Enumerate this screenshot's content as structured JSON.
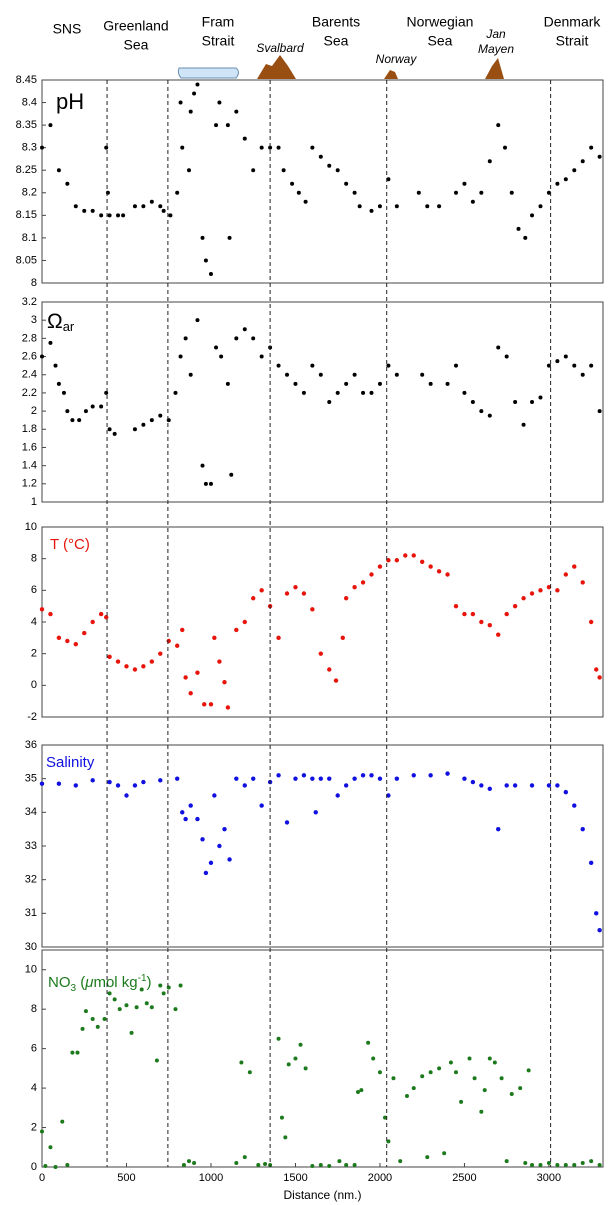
{
  "header": {
    "regions": [
      [
        "SNS"
      ],
      [
        "Greenland",
        "Sea"
      ],
      [
        "Fram",
        "Strait"
      ],
      [
        "Svalbard"
      ],
      [
        "Barents",
        "Sea"
      ],
      [
        "Norway"
      ],
      [
        "Norwegian",
        "Sea"
      ],
      [
        "Jan",
        "Mayen"
      ],
      [
        "Denmark",
        "Strait"
      ]
    ]
  },
  "dividers": [
    385,
    745,
    1350,
    2040,
    3010
  ],
  "chart_data": [
    {
      "type": "scatter",
      "label": [
        "pH"
      ],
      "color": "#000000",
      "xlim": [
        0,
        3320
      ],
      "ylim": [
        8,
        8.45
      ],
      "yticks": [
        8,
        8.05,
        8.1,
        8.15,
        8.2,
        8.25,
        8.3,
        8.35,
        8.4,
        8.45
      ],
      "x": [
        0,
        50,
        100,
        150,
        200,
        250,
        300,
        350,
        380,
        390,
        400,
        450,
        480,
        550,
        600,
        650,
        700,
        720,
        760,
        800,
        820,
        830,
        870,
        880,
        900,
        920,
        950,
        970,
        1000,
        1030,
        1050,
        1100,
        1110,
        1150,
        1200,
        1250,
        1300,
        1350,
        1400,
        1430,
        1480,
        1520,
        1560,
        1600,
        1650,
        1700,
        1750,
        1800,
        1850,
        1880,
        1950,
        2000,
        2050,
        2100,
        2230,
        2280,
        2350,
        2450,
        2500,
        2550,
        2600,
        2650,
        2700,
        2740,
        2780,
        2820,
        2860,
        2900,
        2950,
        3000,
        3050,
        3100,
        3150,
        3200,
        3250,
        3300
      ],
      "values": [
        8.3,
        8.35,
        8.25,
        8.22,
        8.17,
        8.16,
        8.16,
        8.15,
        8.3,
        8.2,
        8.15,
        8.15,
        8.15,
        8.17,
        8.17,
        8.18,
        8.17,
        8.16,
        8.15,
        8.2,
        8.4,
        8.3,
        8.25,
        8.38,
        8.42,
        8.44,
        8.1,
        8.05,
        8.02,
        8.35,
        8.4,
        8.35,
        8.1,
        8.38,
        8.32,
        8.25,
        8.3,
        8.3,
        8.3,
        8.25,
        8.22,
        8.2,
        8.18,
        8.3,
        8.28,
        8.26,
        8.25,
        8.22,
        8.2,
        8.17,
        8.16,
        8.17,
        8.23,
        8.17,
        8.2,
        8.17,
        8.17,
        8.2,
        8.22,
        8.18,
        8.2,
        8.27,
        8.35,
        8.3,
        8.2,
        8.12,
        8.1,
        8.15,
        8.17,
        8.2,
        8.22,
        8.23,
        8.25,
        8.27,
        8.3,
        8.28
      ]
    },
    {
      "type": "scatter",
      "label": [
        "Ω",
        "ar"
      ],
      "color": "#000000",
      "xlim": [
        0,
        3320
      ],
      "ylim": [
        1,
        3.2
      ],
      "yticks": [
        1,
        1.2,
        1.4,
        1.6,
        1.8,
        2,
        2.2,
        2.4,
        2.6,
        2.8,
        3,
        3.2
      ],
      "x": [
        0,
        50,
        80,
        100,
        130,
        150,
        180,
        220,
        260,
        300,
        350,
        380,
        400,
        430,
        550,
        600,
        650,
        700,
        750,
        790,
        820,
        850,
        880,
        920,
        950,
        970,
        1000,
        1030,
        1060,
        1100,
        1120,
        1150,
        1200,
        1250,
        1300,
        1350,
        1400,
        1450,
        1500,
        1550,
        1600,
        1650,
        1700,
        1750,
        1800,
        1850,
        1900,
        1950,
        2000,
        2050,
        2100,
        2250,
        2300,
        2400,
        2450,
        2500,
        2550,
        2600,
        2650,
        2700,
        2750,
        2800,
        2850,
        2900,
        2950,
        3000,
        3050,
        3100,
        3150,
        3200,
        3250,
        3300
      ],
      "values": [
        2.6,
        2.75,
        2.5,
        2.3,
        2.2,
        2.0,
        1.9,
        1.9,
        2.0,
        2.05,
        2.05,
        2.2,
        1.8,
        1.75,
        1.8,
        1.85,
        1.9,
        1.95,
        1.9,
        2.2,
        2.6,
        2.8,
        2.4,
        3.0,
        1.4,
        1.2,
        1.2,
        2.7,
        2.6,
        2.3,
        1.3,
        2.8,
        2.9,
        2.8,
        2.6,
        2.7,
        2.5,
        2.4,
        2.3,
        2.2,
        2.5,
        2.4,
        2.1,
        2.2,
        2.3,
        2.4,
        2.2,
        2.2,
        2.3,
        2.5,
        2.4,
        2.4,
        2.3,
        2.3,
        2.5,
        2.2,
        2.1,
        2.0,
        1.95,
        2.7,
        2.6,
        2.1,
        1.85,
        2.1,
        2.15,
        2.5,
        2.55,
        2.6,
        2.5,
        2.4,
        2.5,
        2.0
      ]
    },
    {
      "type": "scatter",
      "label": [
        "T (°C)"
      ],
      "color": "#e8140c",
      "xlim": [
        0,
        3320
      ],
      "ylim": [
        -2,
        10
      ],
      "yticks": [
        -2,
        0,
        2,
        4,
        6,
        8,
        10
      ],
      "x": [
        0,
        50,
        100,
        150,
        200,
        250,
        300,
        350,
        380,
        400,
        450,
        500,
        550,
        600,
        650,
        700,
        750,
        800,
        830,
        850,
        880,
        920,
        960,
        1000,
        1020,
        1050,
        1080,
        1100,
        1150,
        1200,
        1250,
        1300,
        1350,
        1400,
        1450,
        1500,
        1550,
        1600,
        1650,
        1700,
        1740,
        1780,
        1800,
        1850,
        1900,
        1950,
        2000,
        2050,
        2100,
        2150,
        2200,
        2250,
        2300,
        2350,
        2400,
        2450,
        2500,
        2550,
        2600,
        2650,
        2700,
        2750,
        2800,
        2850,
        2900,
        2950,
        3000,
        3050,
        3100,
        3150,
        3200,
        3250,
        3280,
        3300
      ],
      "values": [
        4.8,
        4.5,
        3.0,
        2.8,
        2.6,
        3.3,
        4.0,
        4.5,
        4.3,
        1.8,
        1.5,
        1.2,
        1.0,
        1.2,
        1.5,
        2.0,
        2.8,
        2.5,
        3.5,
        0.5,
        -0.5,
        0.8,
        -1.2,
        -1.2,
        3.0,
        1.5,
        0.2,
        -1.4,
        3.5,
        4.0,
        5.5,
        6.0,
        5.0,
        3.0,
        5.8,
        6.2,
        5.8,
        4.8,
        2.0,
        1.0,
        0.3,
        3.0,
        5.5,
        6.2,
        6.5,
        7.0,
        7.5,
        7.9,
        7.9,
        8.2,
        8.2,
        7.8,
        7.5,
        7.2,
        7.0,
        5.0,
        4.5,
        4.5,
        4.0,
        3.8,
        3.2,
        4.5,
        5.0,
        5.5,
        5.8,
        6.0,
        6.2,
        6.0,
        7.0,
        7.5,
        6.5,
        4.0,
        1.0,
        0.5
      ]
    },
    {
      "type": "scatter",
      "label": [
        "Salinity"
      ],
      "color": "#1010e0",
      "xlim": [
        0,
        3320
      ],
      "ylim": [
        30,
        36
      ],
      "yticks": [
        30,
        31,
        32,
        33,
        34,
        35,
        36
      ],
      "x": [
        0,
        100,
        200,
        300,
        400,
        450,
        500,
        550,
        600,
        700,
        800,
        830,
        850,
        880,
        920,
        950,
        970,
        1000,
        1020,
        1050,
        1080,
        1110,
        1150,
        1200,
        1250,
        1300,
        1350,
        1400,
        1450,
        1500,
        1550,
        1600,
        1620,
        1650,
        1700,
        1750,
        1800,
        1850,
        1900,
        1950,
        2000,
        2050,
        2100,
        2200,
        2300,
        2400,
        2500,
        2550,
        2600,
        2650,
        2700,
        2750,
        2800,
        2900,
        3000,
        3050,
        3100,
        3150,
        3200,
        3250,
        3280,
        3300
      ],
      "values": [
        34.85,
        34.85,
        34.8,
        34.95,
        34.9,
        34.8,
        34.5,
        34.8,
        34.9,
        34.95,
        35.0,
        34.0,
        33.8,
        34.2,
        33.8,
        33.2,
        32.2,
        32.5,
        34.5,
        33.0,
        33.5,
        32.6,
        35.0,
        34.8,
        35.0,
        34.2,
        34.9,
        35.1,
        33.7,
        35.0,
        35.1,
        35.0,
        34.0,
        35.0,
        35.0,
        34.5,
        34.8,
        35.0,
        35.1,
        35.1,
        35.0,
        34.5,
        35.0,
        35.1,
        35.1,
        35.15,
        35.0,
        34.9,
        34.8,
        34.7,
        33.5,
        34.8,
        34.8,
        34.8,
        34.8,
        34.8,
        34.6,
        34.2,
        33.5,
        32.5,
        31.0,
        30.5
      ]
    },
    {
      "type": "scatter",
      "label": [
        "NO",
        "3",
        " (",
        "μ",
        "mol kg",
        "-1",
        ")"
      ],
      "color": "#1c7a1c",
      "xlim": [
        0,
        3320
      ],
      "ylim": [
        0,
        11
      ],
      "yticks": [
        0,
        2,
        4,
        6,
        8,
        10
      ],
      "xticks": [
        0,
        500,
        1000,
        1500,
        2000,
        2500,
        3000
      ],
      "xlabel": "Distance (nm.)",
      "x": [
        0,
        20,
        50,
        80,
        120,
        150,
        180,
        210,
        240,
        260,
        300,
        330,
        370,
        400,
        430,
        460,
        500,
        530,
        560,
        590,
        620,
        650,
        680,
        700,
        720,
        750,
        790,
        820,
        840,
        870,
        900,
        1150,
        1180,
        1200,
        1230,
        1280,
        1320,
        1350,
        1400,
        1420,
        1440,
        1460,
        1500,
        1530,
        1560,
        1600,
        1650,
        1700,
        1760,
        1800,
        1850,
        1870,
        1890,
        1930,
        1960,
        2000,
        2030,
        2050,
        2080,
        2120,
        2160,
        2200,
        2250,
        2280,
        2300,
        2350,
        2380,
        2420,
        2450,
        2480,
        2530,
        2560,
        2600,
        2620,
        2650,
        2680,
        2720,
        2750,
        2780,
        2830,
        2860,
        2880,
        2900,
        2950,
        3000,
        3050,
        3100,
        3150,
        3200,
        3250,
        3300
      ],
      "values": [
        1.8,
        0.05,
        1.0,
        0.0,
        2.3,
        0.1,
        5.8,
        5.8,
        7.0,
        7.9,
        7.5,
        7.1,
        7.5,
        8.8,
        8.5,
        8.0,
        8.2,
        6.8,
        8.1,
        9.0,
        8.3,
        8.1,
        5.4,
        9.2,
        8.8,
        9.1,
        8.0,
        9.2,
        0.1,
        0.3,
        0.2,
        0.2,
        5.3,
        0.5,
        4.8,
        0.1,
        0.15,
        0.1,
        6.5,
        2.5,
        1.5,
        5.2,
        5.5,
        6.2,
        5.0,
        0.05,
        0.1,
        0.05,
        0.3,
        0.1,
        0.1,
        3.8,
        3.9,
        6.3,
        5.5,
        4.8,
        2.5,
        1.3,
        4.5,
        0.3,
        3.6,
        4.0,
        4.6,
        0.5,
        4.8,
        5.0,
        0.7,
        5.3,
        4.8,
        3.3,
        5.5,
        4.5,
        2.8,
        3.9,
        5.5,
        5.3,
        4.5,
        0.3,
        3.7,
        4.0,
        0.2,
        4.9,
        0.1,
        0.1,
        0.2,
        0.1,
        0.1,
        0.1,
        0.2,
        0.3,
        0.1
      ]
    }
  ]
}
